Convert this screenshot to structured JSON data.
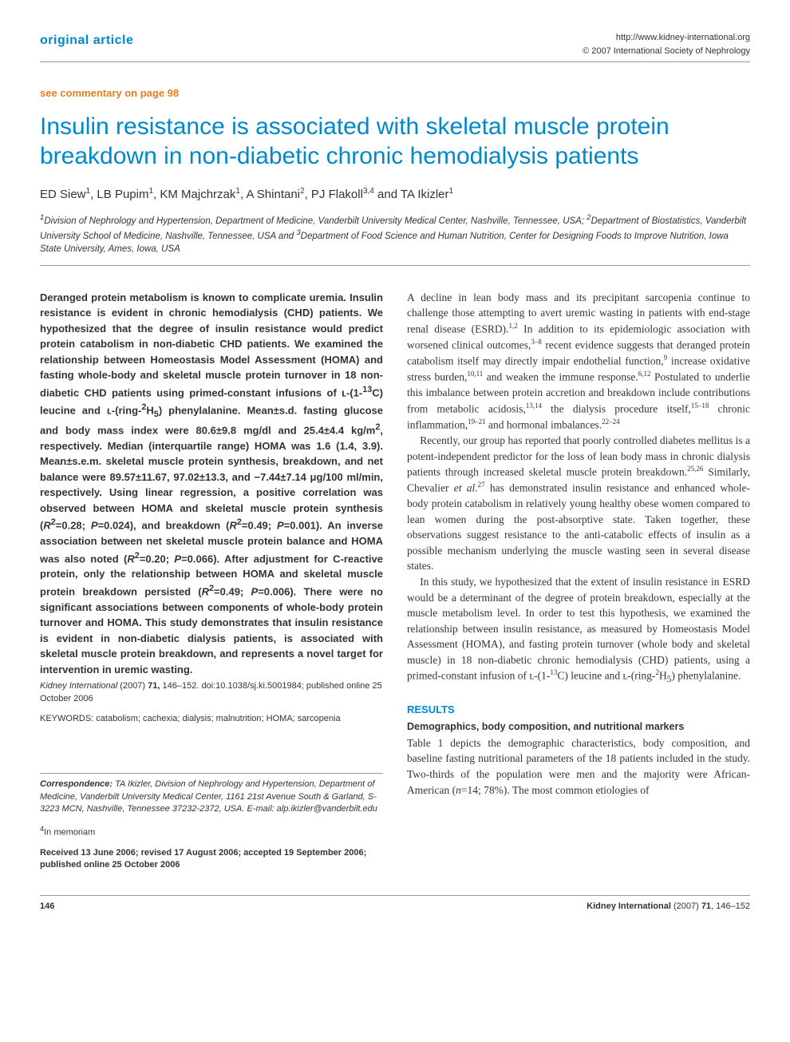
{
  "header": {
    "article_type": "original article",
    "url": "http://www.kidney-international.org",
    "copyright": "© 2007 International Society of Nephrology",
    "commentary": "see commentary on page 98"
  },
  "title": "Insulin resistance is associated with skeletal muscle protein breakdown in non-diabetic chronic hemodialysis patients",
  "authors_html": "ED Siew<sup>1</sup>, LB Pupim<sup>1</sup>, KM Majchrzak<sup>1</sup>, A Shintani<sup>2</sup>, PJ Flakoll<sup>3,4</sup> and TA Ikizler<sup>1</sup>",
  "affiliations_html": "<sup>1</sup>Division of Nephrology and Hypertension, Department of Medicine, Vanderbilt University Medical Center, Nashville, Tennessee, USA; <sup>2</sup>Department of Biostatistics, Vanderbilt University School of Medicine, Nashville, Tennessee, USA and <sup>3</sup>Department of Food Science and Human Nutrition, Center for Designing Foods to Improve Nutrition, Iowa State University, Ames, Iowa, USA",
  "abstract_html": "Deranged protein metabolism is known to complicate uremia. Insulin resistance is evident in chronic hemodialysis (CHD) patients. We hypothesized that the degree of insulin resistance would predict protein catabolism in non-diabetic CHD patients. We examined the relationship between Homeostasis Model Assessment (HOMA) and fasting whole-body and skeletal muscle protein turnover in 18 non-diabetic CHD patients using primed-constant infusions of ʟ-(1-<sup>13</sup>C) leucine and ʟ-(ring-<sup>2</sup>H<sub>5</sub>) phenylalanine. Mean±s.d. fasting glucose and body mass index were 80.6±9.8 mg/dl and 25.4±4.4 kg/m<sup>2</sup>, respectively. Median (interquartile range) HOMA was 1.6 (1.4, 3.9). Mean±s.e.m. skeletal muscle protein synthesis, breakdown, and net balance were 89.57±11.67, 97.02±13.3, and −7.44±7.14 μg/100 ml/min, respectively. Using linear regression, a positive correlation was observed between HOMA and skeletal muscle protein synthesis (<i>R</i><sup>2</sup>=0.28; <i>P</i>=0.024), and breakdown (<i>R</i><sup>2</sup>=0.49; <i>P</i>=0.001). An inverse association between net skeletal muscle protein balance and HOMA was also noted (<i>R</i><sup>2</sup>=0.20; <i>P</i>=0.066). After adjustment for C-reactive protein, only the relationship between HOMA and skeletal muscle protein breakdown persisted (<i>R</i><sup>2</sup>=0.49; <i>P</i>=0.006). There were no significant associations between components of whole-body protein turnover and HOMA. This study demonstrates that insulin resistance is evident in non-diabetic dialysis patients, is associated with skeletal muscle protein breakdown, and represents a novel target for intervention in uremic wasting.",
  "citation_html": "<i>Kidney International</i> (2007) <b>71,</b> 146–152. doi:10.1038/sj.ki.5001984; published online 25 October 2006",
  "keywords": "KEYWORDS: catabolism; cachexia; dialysis; malnutrition; HOMA; sarcopenia",
  "body": {
    "p1_html": "A decline in lean body mass and its precipitant sarcopenia continue to challenge those attempting to avert uremic wasting in patients with end-stage renal disease (ESRD).<sup>1,2</sup> In addition to its epidemiologic association with worsened clinical outcomes,<sup>3–8</sup> recent evidence suggests that deranged protein catabolism itself may directly impair endothelial function,<sup>9</sup> increase oxidative stress burden,<sup>10,11</sup> and weaken the immune response.<sup>6,12</sup> Postulated to underlie this imbalance between protein accretion and breakdown include contributions from metabolic acidosis,<sup>13,14</sup> the dialysis procedure itself,<sup>15–18</sup> chronic inflammation,<sup>19–21</sup> and hormonal imbalances.<sup>22–24</sup>",
    "p2_html": "Recently, our group has reported that poorly controlled diabetes mellitus is a potent-independent predictor for the loss of lean body mass in chronic dialysis patients through increased skeletal muscle protein breakdown.<sup>25,26</sup> Similarly, Chevalier <i>et al.</i><sup>27</sup> has demonstrated insulin resistance and enhanced whole-body protein catabolism in relatively young healthy obese women compared to lean women during the post-absorptive state. Taken together, these observations suggest resistance to the anti-catabolic effects of insulin as a possible mechanism underlying the muscle wasting seen in several disease states.",
    "p3_html": "In this study, we hypothesized that the extent of insulin resistance in ESRD would be a determinant of the degree of protein breakdown, especially at the muscle metabolism level. In order to test this hypothesis, we examined the relationship between insulin resistance, as measured by Homeostasis Model Assessment (HOMA), and fasting protein turnover (whole body and skeletal muscle) in 18 non-diabetic chronic hemodialysis (CHD) patients, using a primed-constant infusion of ʟ-(1-<sup>13</sup>C) leucine and ʟ-(ring-<sup>2</sup>H<sub>5</sub>) phenylalanine."
  },
  "results": {
    "heading": "RESULTS",
    "subheading": "Demographics, body composition, and nutritional markers",
    "text_html": "Table 1 depicts the demographic characteristics, body composition, and baseline fasting nutritional parameters of the 18 patients included in the study. Two-thirds of the population were men and the majority were African-American (<i>n</i>=14; 78%). The most common etiologies of"
  },
  "correspondence_html": "<b>Correspondence:</b> TA Ikizler, Division of Nephrology and Hypertension, Department of Medicine, Vanderbilt University Medical Center, 1161 21st Avenue South & Garland, S-3223 MCN, Nashville, Tennessee 37232-2372, USA. E-mail: alp.ikizler@vanderbilt.edu",
  "memoriam_html": "<sup>4</sup>In memoriam",
  "received": "Received 13 June 2006; revised 17 August 2006; accepted 19 September 2006; published online 25 October 2006",
  "footer": {
    "page": "146",
    "journal_html": "<b>Kidney International</b> (2007) <b>71</b>, 146–152"
  },
  "style": {
    "accent_color": "#0088cc",
    "commentary_color": "#e67e22",
    "text_color": "#333333",
    "rule_color": "#999999",
    "background": "#ffffff"
  }
}
